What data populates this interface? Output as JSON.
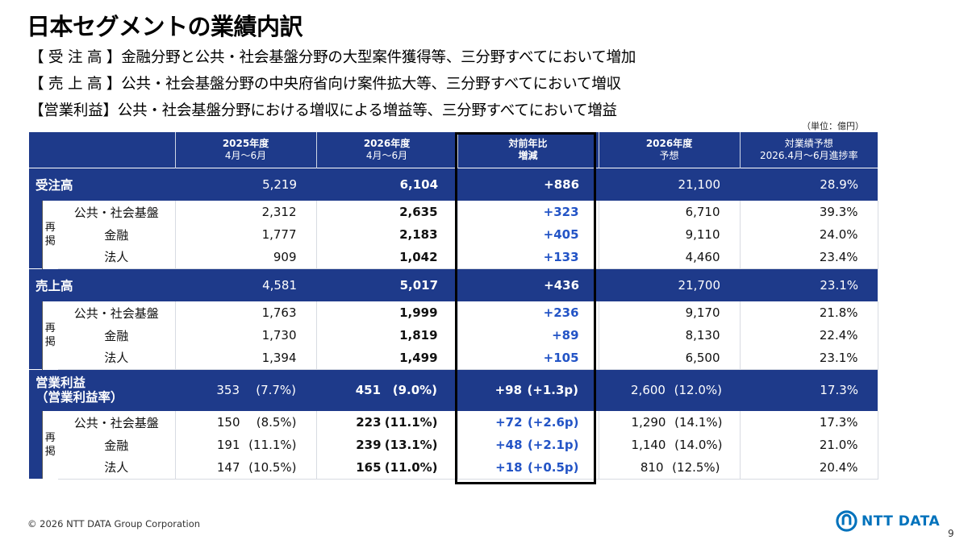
{
  "title": "日本セグメントの業績内訳",
  "bullets": [
    "【 受 注 高 】金融分野と公共・社会基盤分野の大型案件獲得等、三分野すべてにおいて増加",
    "【 売 上 高 】公共・社会基盤分野の中央府省向け案件拡大等、三分野すべてにおいて増収",
    "【営業利益】公共・社会基盤分野における増収による増益等、三分野すべてにおいて増益"
  ],
  "unit_note": "（単位：億円）",
  "table": {
    "headers": [
      {
        "line1": "",
        "line2": ""
      },
      {
        "line1": "2025年度",
        "line2": "4月～6月"
      },
      {
        "line1": "2026年度",
        "line2": "4月～6月"
      },
      {
        "line1": "対前年比",
        "line2": "増減"
      },
      {
        "line1": "2026年度",
        "line2": "予想"
      },
      {
        "line1": "対業績予想",
        "line2": "2026.4月～6月進捗率"
      }
    ],
    "sub_tag": "再\n掲",
    "sections": [
      {
        "label": "受注高",
        "label2": "",
        "prev": "5,219",
        "prev_pct": "",
        "curr": "6,104",
        "curr_pct": "",
        "diff": "+886",
        "diff_pct": "",
        "forecast": "21,100",
        "forecast_pct": "",
        "progress": "28.9%",
        "rows": [
          {
            "label": "公共・社会基盤",
            "prev": "2,312",
            "prev_pct": "",
            "curr": "2,635",
            "curr_pct": "",
            "diff": "+323",
            "diff_pct": "",
            "forecast": "6,710",
            "forecast_pct": "",
            "progress": "39.3%"
          },
          {
            "label": "金融",
            "prev": "1,777",
            "prev_pct": "",
            "curr": "2,183",
            "curr_pct": "",
            "diff": "+405",
            "diff_pct": "",
            "forecast": "9,110",
            "forecast_pct": "",
            "progress": "24.0%"
          },
          {
            "label": "法人",
            "prev": "909",
            "prev_pct": "",
            "curr": "1,042",
            "curr_pct": "",
            "diff": "+133",
            "diff_pct": "",
            "forecast": "4,460",
            "forecast_pct": "",
            "progress": "23.4%"
          }
        ]
      },
      {
        "label": "売上高",
        "label2": "",
        "prev": "4,581",
        "prev_pct": "",
        "curr": "5,017",
        "curr_pct": "",
        "diff": "+436",
        "diff_pct": "",
        "forecast": "21,700",
        "forecast_pct": "",
        "progress": "23.1%",
        "rows": [
          {
            "label": "公共・社会基盤",
            "prev": "1,763",
            "prev_pct": "",
            "curr": "1,999",
            "curr_pct": "",
            "diff": "+236",
            "diff_pct": "",
            "forecast": "9,170",
            "forecast_pct": "",
            "progress": "21.8%"
          },
          {
            "label": "金融",
            "prev": "1,730",
            "prev_pct": "",
            "curr": "1,819",
            "curr_pct": "",
            "diff": "+89",
            "diff_pct": "",
            "forecast": "8,130",
            "forecast_pct": "",
            "progress": "22.4%"
          },
          {
            "label": "法人",
            "prev": "1,394",
            "prev_pct": "",
            "curr": "1,499",
            "curr_pct": "",
            "diff": "+105",
            "diff_pct": "",
            "forecast": "6,500",
            "forecast_pct": "",
            "progress": "23.1%"
          }
        ]
      },
      {
        "label": "営業利益",
        "label2": "（営業利益率）",
        "prev": "353",
        "prev_pct": "(7.7%)",
        "curr": "451",
        "curr_pct": "(9.0%)",
        "diff": "+98",
        "diff_pct": "(+1.3p)",
        "forecast": "2,600",
        "forecast_pct": "(12.0%)",
        "progress": "17.3%",
        "rows": [
          {
            "label": "公共・社会基盤",
            "prev": "150",
            "prev_pct": "(8.5%)",
            "curr": "223",
            "curr_pct": "(11.1%)",
            "diff": "+72",
            "diff_pct": "(+2.6p)",
            "forecast": "1,290",
            "forecast_pct": "(14.1%)",
            "progress": "17.3%"
          },
          {
            "label": "金融",
            "prev": "191",
            "prev_pct": "(11.1%)",
            "curr": "239",
            "curr_pct": "(13.1%)",
            "diff": "+48",
            "diff_pct": "(+2.1p)",
            "forecast": "1,140",
            "forecast_pct": "(14.0%)",
            "progress": "21.0%"
          },
          {
            "label": "法人",
            "prev": "147",
            "prev_pct": "(10.5%)",
            "curr": "165",
            "curr_pct": "(11.0%)",
            "diff": "+18",
            "diff_pct": "(+0.5p)",
            "forecast": "810",
            "forecast_pct": "(12.5%)",
            "progress": "20.4%"
          }
        ]
      }
    ]
  },
  "footer": "© 2026 NTT DATA Group Corporation",
  "logo_text": "NTT DATA",
  "page_number": "9",
  "colors": {
    "header_bg": "#1e3a8a",
    "diff_blue": "#2354c6",
    "logo_blue": "#0072bc"
  }
}
